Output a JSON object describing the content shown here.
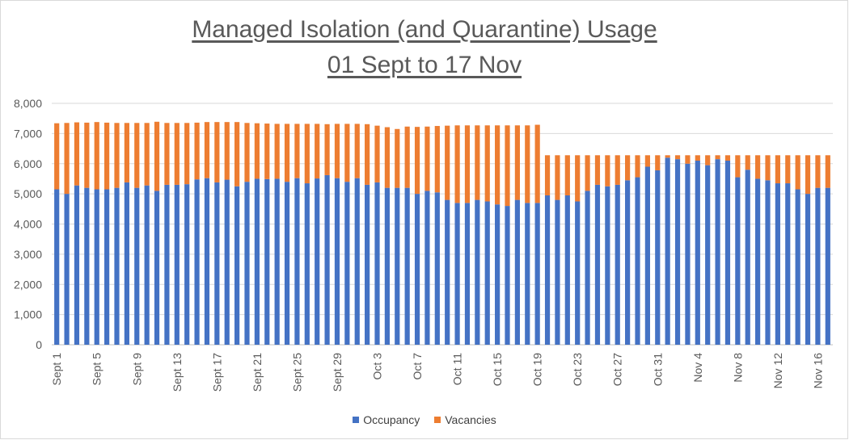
{
  "chart_data": {
    "type": "stacked-bar",
    "title_line1": "Managed Isolation (and Quarantine) Usage",
    "title_line2": "01 Sept to 17 Nov",
    "xlabel": "",
    "ylabel": "",
    "ylim": [
      0,
      8000
    ],
    "yticks": [
      "0",
      "1,000",
      "2,000",
      "3,000",
      "4,000",
      "5,000",
      "6,000",
      "7,000",
      "8,000"
    ],
    "grid": true,
    "legend_position": "bottom",
    "categories": [
      "Sept 1",
      "Sept 2",
      "Sept 3",
      "Sept 4",
      "Sept 5",
      "Sept 6",
      "Sept 7",
      "Sept 8",
      "Sept 9",
      "Sept 10",
      "Sept 11",
      "Sept 12",
      "Sept 13",
      "Sept 14",
      "Sept 15",
      "Sept 16",
      "Sept 17",
      "Sept 18",
      "Sept 19",
      "Sept 20",
      "Sept 21",
      "Sept 22",
      "Sept 23",
      "Sept 24",
      "Sept 25",
      "Sept 26",
      "Sept 27",
      "Sept 28",
      "Sept 29",
      "Sept 30",
      "Oct 1",
      "Oct 2",
      "Oct 3",
      "Oct 4",
      "Oct 5",
      "Oct 6",
      "Oct 7",
      "Oct 8",
      "Oct 9",
      "Oct 10",
      "Oct 11",
      "Oct 12",
      "Oct 13",
      "Oct 14",
      "Oct 15",
      "Oct 16",
      "Oct 17",
      "Oct 18",
      "Oct 19",
      "Oct 20",
      "Oct 21",
      "Oct 22",
      "Oct 23",
      "Oct 24",
      "Oct 25",
      "Oct 26",
      "Oct 27",
      "Oct 28",
      "Oct 29",
      "Oct 30",
      "Oct 31",
      "Nov 1",
      "Nov 2",
      "Nov 3",
      "Nov 4",
      "Nov 5",
      "Nov 6",
      "Nov 7",
      "Nov 8",
      "Nov 9",
      "Nov 10",
      "Nov 11",
      "Nov 12",
      "Nov 13",
      "Nov 14",
      "Nov 15",
      "Nov 16",
      "Nov 17"
    ],
    "xtick_labels_shown": [
      "Sept 1",
      "Sept 5",
      "Sept 9",
      "Sept 13",
      "Sept 17",
      "Sept 21",
      "Sept 25",
      "Sept 29",
      "Oct 3",
      "Oct 7",
      "Oct 11",
      "Oct 15",
      "Oct 19",
      "Oct 23",
      "Oct 27",
      "Oct 31",
      "Nov 4",
      "Nov 8",
      "Nov 12",
      "Nov 16"
    ],
    "series": [
      {
        "name": "Occupancy",
        "color": "#4472c4",
        "values": [
          5150,
          5000,
          5280,
          5200,
          5150,
          5150,
          5200,
          5380,
          5200,
          5280,
          5100,
          5300,
          5300,
          5320,
          5480,
          5520,
          5380,
          5470,
          5250,
          5400,
          5500,
          5490,
          5500,
          5400,
          5520,
          5350,
          5510,
          5620,
          5520,
          5400,
          5520,
          5300,
          5380,
          5200,
          5200,
          5200,
          5000,
          5100,
          5050,
          4800,
          4700,
          4700,
          4800,
          4750,
          4650,
          4600,
          4800,
          4700,
          4700,
          4950,
          4800,
          4950,
          4750,
          5100,
          5300,
          5250,
          5300,
          5450,
          5550,
          5900,
          5780,
          6200,
          6150,
          6000,
          6100,
          5950,
          6150,
          6100,
          5550,
          5800,
          5500,
          5450,
          5350,
          5350,
          5150,
          5000,
          5200,
          5200
        ]
      },
      {
        "name": "Vacancies",
        "color": "#ed7d31",
        "values": [
          2190,
          2350,
          2090,
          2160,
          2230,
          2210,
          2150,
          1970,
          2150,
          2070,
          2290,
          2050,
          2050,
          2030,
          1880,
          1860,
          2000,
          1910,
          2130,
          1950,
          1840,
          1840,
          1820,
          1920,
          1800,
          1970,
          1810,
          1690,
          1800,
          1920,
          1800,
          2010,
          1880,
          2010,
          1950,
          2030,
          2220,
          2130,
          2200,
          2460,
          2570,
          2570,
          2470,
          2520,
          2620,
          2670,
          2470,
          2570,
          2590,
          1330,
          1480,
          1330,
          1530,
          1180,
          980,
          1030,
          980,
          830,
          730,
          380,
          500,
          80,
          130,
          280,
          180,
          330,
          130,
          180,
          730,
          480,
          780,
          830,
          930,
          930,
          1130,
          1280,
          1080,
          1080
        ]
      }
    ]
  }
}
